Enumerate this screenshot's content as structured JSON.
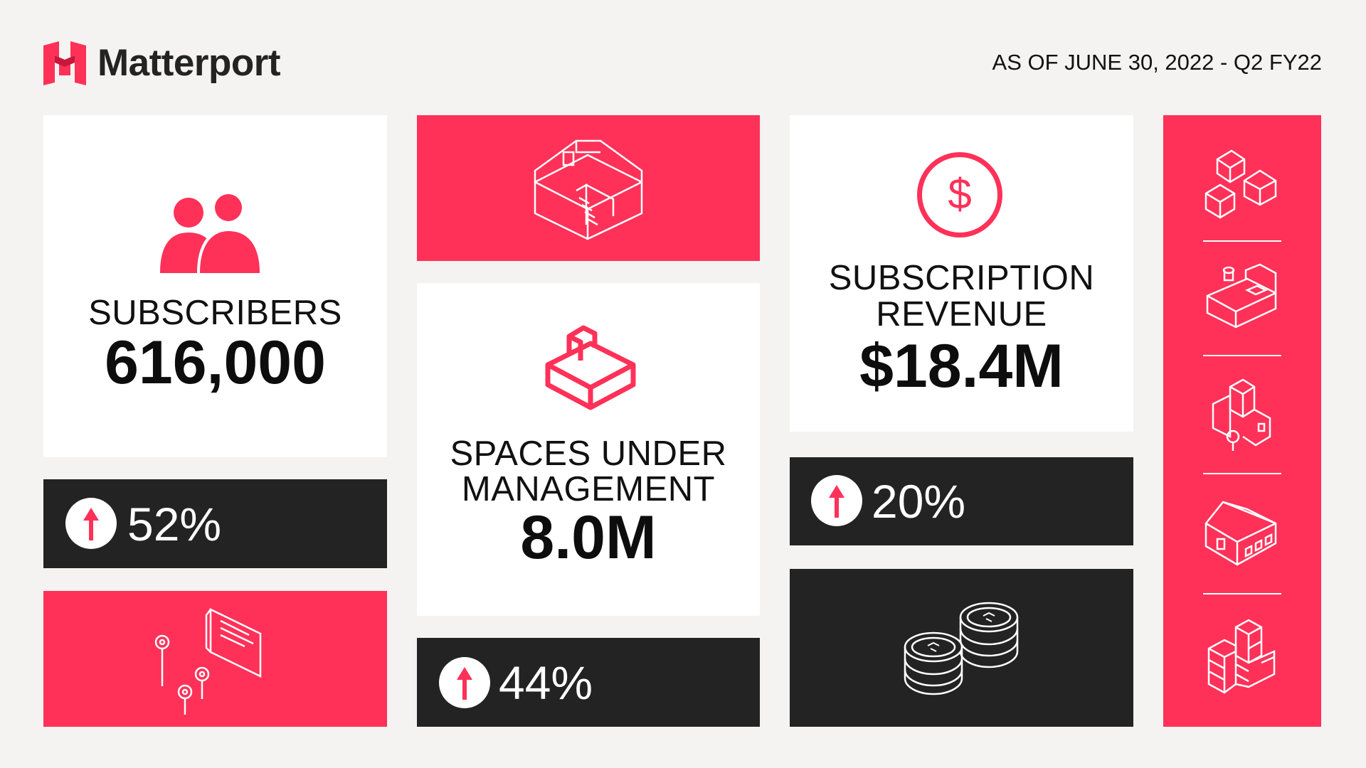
{
  "header": {
    "brand": "Matterport",
    "as_of": "AS OF JUNE 30, 2022 - Q2 FY22"
  },
  "stats": {
    "subscribers": {
      "label": "SUBSCRIBERS",
      "value": "616,000",
      "growth": "52%"
    },
    "spaces": {
      "label_line1": "SPACES UNDER",
      "label_line2": "MANAGEMENT",
      "value": "8.0M",
      "growth": "44%"
    },
    "revenue": {
      "label_line1": "SUBSCRIPTION",
      "label_line2": "REVENUE",
      "value": "$18.4M",
      "growth": "20%",
      "currency_symbol": "$"
    }
  },
  "colors": {
    "accent": "#ff3158",
    "dark": "#232323",
    "background": "#f4f3f1",
    "card": "#ffffff"
  },
  "icons": {
    "subscribers": "people-icon",
    "growth": "arrow-up-icon",
    "house_cutaway": "house-stairs-icon",
    "room_3d": "room-3d-icon",
    "revenue": "dollar-circle-icon",
    "coins": "coins-icon",
    "signs": "sign-markers-icon",
    "sidebar": [
      "houses-icon",
      "bedroom-icon",
      "buildings-tree-icon",
      "house-icon",
      "warehouse-icon"
    ]
  }
}
